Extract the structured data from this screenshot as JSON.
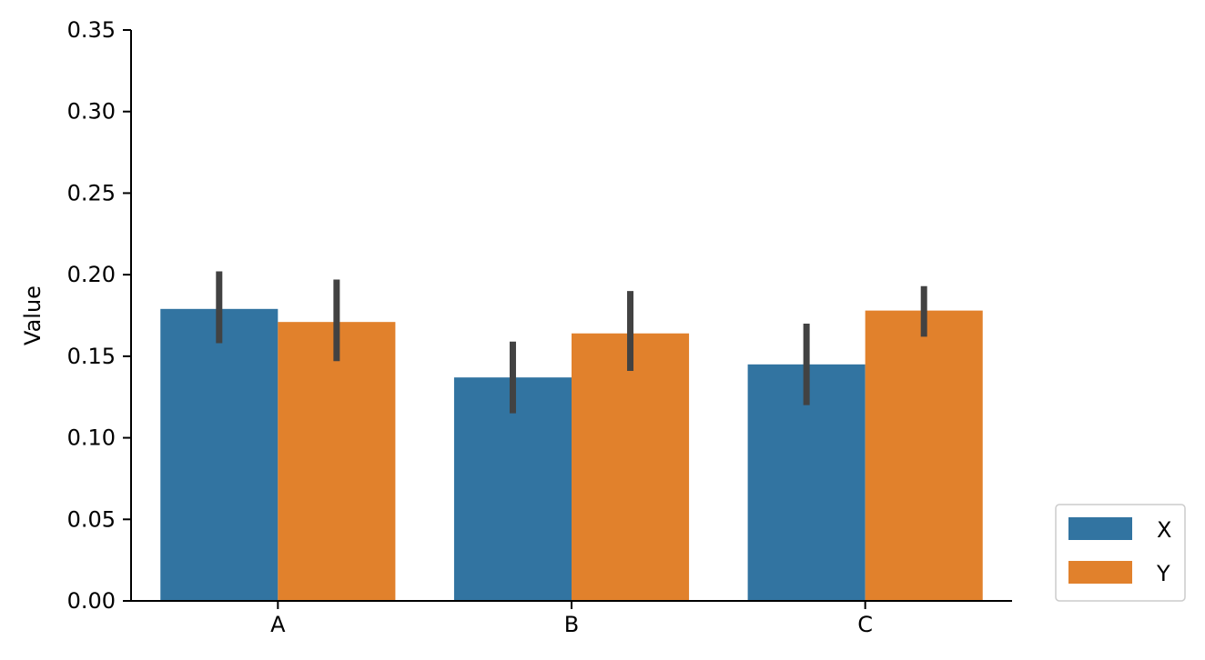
{
  "chart_data": {
    "type": "bar",
    "title": "",
    "xlabel": "",
    "ylabel": "Value",
    "ylim": [
      0,
      0.35
    ],
    "yticks": [
      "0.00",
      "0.05",
      "0.10",
      "0.15",
      "0.20",
      "0.25",
      "0.30",
      "0.35"
    ],
    "categories": [
      "A",
      "B",
      "C"
    ],
    "series": [
      {
        "name": "X",
        "color": "#3274a1",
        "values": [
          0.179,
          0.137,
          0.145
        ],
        "error_low": [
          0.158,
          0.115,
          0.12
        ],
        "error_high": [
          0.202,
          0.159,
          0.17
        ]
      },
      {
        "name": "Y",
        "color": "#e1812c",
        "values": [
          0.171,
          0.164,
          0.178
        ],
        "error_low": [
          0.147,
          0.141,
          0.162
        ],
        "error_high": [
          0.197,
          0.19,
          0.193
        ]
      }
    ],
    "error_bar_color": "#424242",
    "grid": false,
    "legend_position": "outside-bottom-right"
  }
}
